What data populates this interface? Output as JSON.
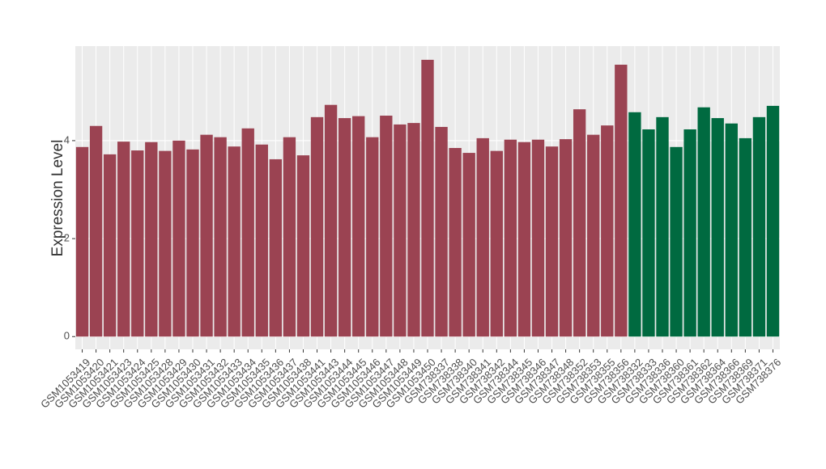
{
  "chart_data": {
    "type": "bar",
    "y_label": "Expression Level",
    "categories": [
      "GSM1053419",
      "GSM1053420",
      "GSM1053421",
      "GSM1053423",
      "GSM1053424",
      "GSM1053425",
      "GSM1053428",
      "GSM1053429",
      "GSM1053430",
      "GSM1053431",
      "GSM1053432",
      "GSM1053433",
      "GSM1053434",
      "GSM1053435",
      "GSM1053436",
      "GSM1053437",
      "GSM1053438",
      "GSM1053441",
      "GSM1053443",
      "GSM1053444",
      "GSM1053445",
      "GSM1053446",
      "GSM1053447",
      "GSM1053448",
      "GSM1053449",
      "GSM1053450",
      "GSM738337",
      "GSM738338",
      "GSM738340",
      "GSM738341",
      "GSM738342",
      "GSM738344",
      "GSM738345",
      "GSM738346",
      "GSM738347",
      "GSM738348",
      "GSM738352",
      "GSM738353",
      "GSM738355",
      "GSM738356",
      "GSM738332",
      "GSM738333",
      "GSM738336",
      "GSM738360",
      "GSM738361",
      "GSM738362",
      "GSM738364",
      "GSM738366",
      "GSM738369",
      "GSM738371",
      "GSM738376"
    ],
    "values": [
      3.87,
      4.3,
      3.72,
      3.98,
      3.8,
      3.97,
      3.79,
      4.0,
      3.82,
      4.12,
      4.07,
      3.88,
      4.25,
      3.92,
      3.62,
      4.07,
      3.7,
      4.48,
      4.73,
      4.46,
      4.5,
      4.07,
      4.51,
      4.33,
      4.36,
      5.65,
      4.28,
      3.85,
      3.75,
      4.05,
      3.79,
      4.02,
      3.97,
      4.02,
      3.88,
      4.03,
      4.64,
      4.12,
      4.31,
      5.55,
      4.58,
      4.23,
      4.48,
      3.87,
      4.23,
      4.68,
      4.46,
      4.35,
      4.05,
      4.48,
      4.71
    ],
    "colors": [
      "#9b4352",
      "#9b4352",
      "#9b4352",
      "#9b4352",
      "#9b4352",
      "#9b4352",
      "#9b4352",
      "#9b4352",
      "#9b4352",
      "#9b4352",
      "#9b4352",
      "#9b4352",
      "#9b4352",
      "#9b4352",
      "#9b4352",
      "#9b4352",
      "#9b4352",
      "#9b4352",
      "#9b4352",
      "#9b4352",
      "#9b4352",
      "#9b4352",
      "#9b4352",
      "#9b4352",
      "#9b4352",
      "#9b4352",
      "#9b4352",
      "#9b4352",
      "#9b4352",
      "#9b4352",
      "#9b4352",
      "#9b4352",
      "#9b4352",
      "#9b4352",
      "#9b4352",
      "#9b4352",
      "#9b4352",
      "#9b4352",
      "#9b4352",
      "#9b4352",
      "#006a40",
      "#006a40",
      "#006a40",
      "#006a40",
      "#006a40",
      "#006a40",
      "#006a40",
      "#006a40",
      "#006a40",
      "#006a40",
      "#006a40"
    ],
    "ylim": [
      -0.26,
      5.93
    ],
    "yticks": [
      0,
      2,
      4
    ],
    "grid": true
  }
}
